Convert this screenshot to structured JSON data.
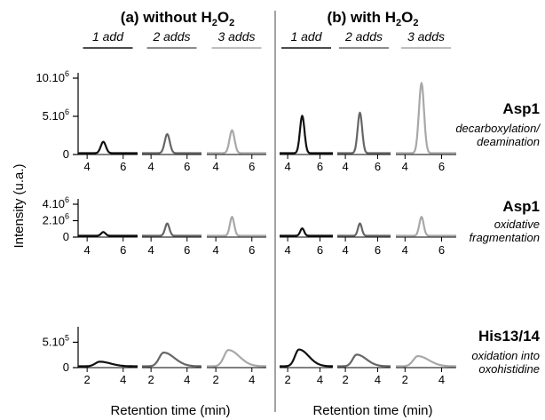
{
  "chart_data": {
    "type": "line",
    "panel_titles": [
      {
        "prefix": "(a) without H",
        "sub": "2",
        "mid": "O",
        "sub2": "2"
      },
      {
        "prefix": "(b) with H",
        "sub": "2",
        "mid": "O",
        "sub2": "2"
      }
    ],
    "add_labels": [
      "1 add",
      "2 adds",
      "3 adds"
    ],
    "add_colors": [
      "#111111",
      "#666666",
      "#a8a8a8"
    ],
    "ylabel": "Intensity (u.a.)",
    "xlabel": "Retention time (min)",
    "rows": [
      {
        "title": "Asp1",
        "desc": [
          "decarboxylation/",
          "deamination"
        ],
        "yticks": [
          {
            "value": 10000000,
            "base": "10.10",
            "exp": "6"
          },
          {
            "value": 5000000,
            "base": "5.10",
            "exp": "6"
          },
          {
            "value": 0,
            "base": "0",
            "exp": ""
          }
        ],
        "ylim": [
          0,
          10000000
        ],
        "xlim": [
          3.5,
          6.8
        ],
        "xticks": [
          4,
          6
        ],
        "peak_center": 4.9,
        "peak_width": 0.14,
        "tail": 0.0,
        "peaks": {
          "without": [
            1500000,
            2500000,
            3000000
          ],
          "with": [
            4900000,
            5300000,
            9200000
          ]
        }
      },
      {
        "title": "Asp1",
        "desc": [
          "oxidative",
          "fragmentation"
        ],
        "yticks": [
          {
            "value": 4000000,
            "base": "4.10",
            "exp": "6"
          },
          {
            "value": 2000000,
            "base": "2.10",
            "exp": "6"
          },
          {
            "value": 0,
            "base": "0",
            "exp": ""
          }
        ],
        "ylim": [
          0,
          4000000
        ],
        "xlim": [
          3.5,
          6.8
        ],
        "xticks": [
          4,
          6
        ],
        "peak_center": 4.9,
        "peak_width": 0.12,
        "tail": 0.0,
        "peaks": {
          "without": [
            450000,
            1500000,
            2300000
          ],
          "with": [
            900000,
            1500000,
            2300000
          ]
        }
      },
      {
        "title": "His13/14",
        "desc": [
          "oxidation into",
          "oxohistidine"
        ],
        "yticks": [
          {
            "value": 500000,
            "base": "5.10",
            "exp": "5"
          },
          {
            "value": 0,
            "base": "0",
            "exp": ""
          }
        ],
        "ylim": [
          0,
          700000
        ],
        "xlim": [
          1.5,
          4.8
        ],
        "xticks": [
          2,
          4
        ],
        "peak_center": 2.7,
        "peak_width": 0.25,
        "tail": 0.35,
        "peaks": {
          "without": [
            90000,
            270000,
            320000
          ],
          "with": [
            330000,
            230000,
            200000
          ]
        }
      }
    ]
  }
}
